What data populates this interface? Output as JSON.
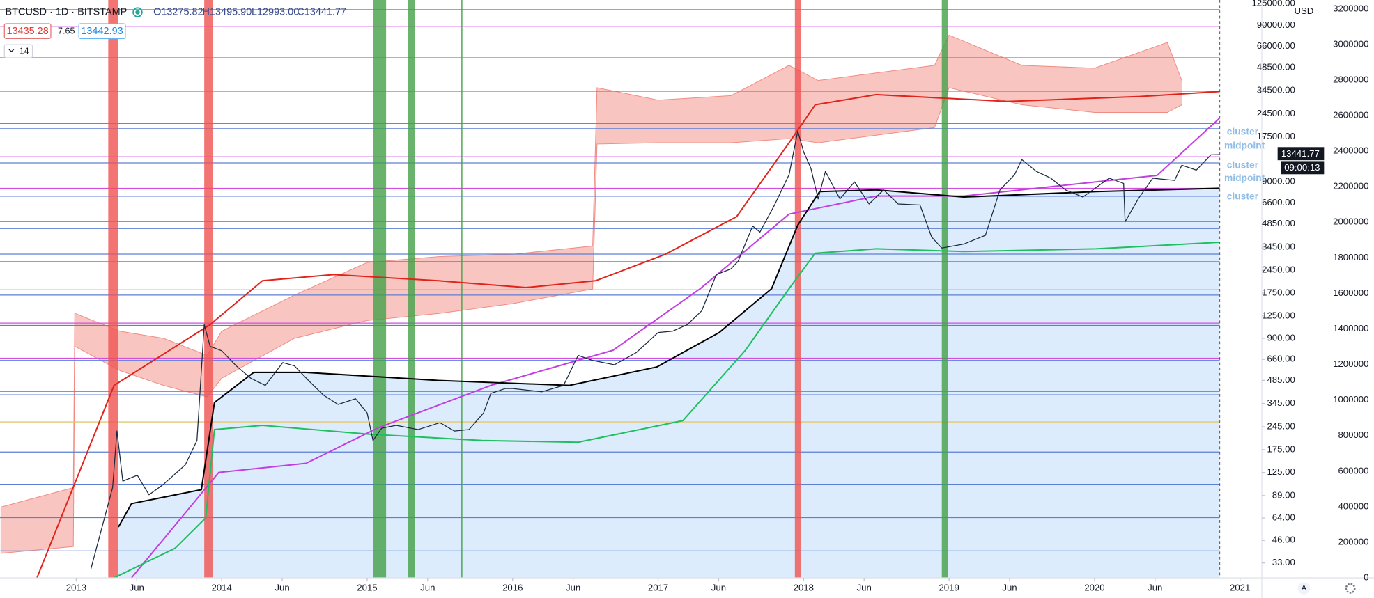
{
  "chart_data": {
    "type": "line",
    "symbol": "BTCUSD · 1D · BITSTAMP",
    "ohlc": [
      "O13275.82",
      "H13495.90",
      "L12993.00",
      "C13441.77"
    ],
    "indicator": {
      "left": "13435.28",
      "mid": "7.65",
      "right": "13442.93"
    },
    "interval": "14",
    "currency": "USD",
    "countdown": "09:00:13",
    "annotations": [
      "cluster",
      "midpoint",
      "cluster",
      "midpoint",
      "cluster"
    ],
    "auto_button": "A",
    "log_scale": true,
    "xlim": [
      2012.476,
      2021.15
    ],
    "xticks": [
      {
        "value": 2013,
        "label": "2013"
      },
      {
        "value": 2013.416,
        "label": "Jun"
      },
      {
        "value": 2014,
        "label": "2014"
      },
      {
        "value": 2014.416,
        "label": "Jun"
      },
      {
        "value": 2015,
        "label": "2015"
      },
      {
        "value": 2015.416,
        "label": "Jun"
      },
      {
        "value": 2016,
        "label": "2016"
      },
      {
        "value": 2016.416,
        "label": "Jun"
      },
      {
        "value": 2017,
        "label": "2017"
      },
      {
        "value": 2017.416,
        "label": "Jun"
      },
      {
        "value": 2018,
        "label": "2018"
      },
      {
        "value": 2018.416,
        "label": "Jun"
      },
      {
        "value": 2019,
        "label": "2019"
      },
      {
        "value": 2019.416,
        "label": "Jun"
      },
      {
        "value": 2020,
        "label": "2020"
      },
      {
        "value": 2020.416,
        "label": "Jun"
      },
      {
        "value": 2021,
        "label": "2021"
      }
    ],
    "ylim": [
      26.5,
      130800
    ],
    "yticks": [
      {
        "value": 125000,
        "label": "125000.00"
      },
      {
        "value": 90000,
        "label": "90000.00"
      },
      {
        "value": 66000,
        "label": "66000.00"
      },
      {
        "value": 48500,
        "label": "48500.00"
      },
      {
        "value": 34500,
        "label": "34500.00"
      },
      {
        "value": 24500,
        "label": "24500.00"
      },
      {
        "value": 17500,
        "label": "17500.00"
      },
      {
        "value": 9000,
        "label": "9000.00"
      },
      {
        "value": 6600,
        "label": "6600.00"
      },
      {
        "value": 4850,
        "label": "4850.00"
      },
      {
        "value": 3450,
        "label": "3450.00"
      },
      {
        "value": 2450,
        "label": "2450.00"
      },
      {
        "value": 1750,
        "label": "1750.00"
      },
      {
        "value": 1250,
        "label": "1250.00"
      },
      {
        "value": 900,
        "label": "900.00"
      },
      {
        "value": 660,
        "label": "660.00"
      },
      {
        "value": 485,
        "label": "485.00"
      },
      {
        "value": 345,
        "label": "345.00"
      },
      {
        "value": 245,
        "label": "245.00"
      },
      {
        "value": 175,
        "label": "175.00"
      },
      {
        "value": 125,
        "label": "125.00"
      },
      {
        "value": 89,
        "label": "89.00"
      },
      {
        "value": 64,
        "label": "64.00"
      },
      {
        "value": 46,
        "label": "46.00"
      },
      {
        "value": 33,
        "label": "33.00"
      }
    ],
    "y2lim": [
      0,
      3250000
    ],
    "y2ticks": [
      0,
      200000,
      400000,
      600000,
      800000,
      1000000,
      1200000,
      1400000,
      1600000,
      1800000,
      2000000,
      2200000,
      2400000,
      2600000,
      2800000,
      3000000,
      3200000
    ],
    "bands": [
      {
        "from": 2013.22,
        "to": 2013.29,
        "color": "#ef5350"
      },
      {
        "from": 2013.88,
        "to": 2013.94,
        "color": "#ef5350"
      },
      {
        "from": 2015.04,
        "to": 2015.13,
        "color": "#43a047"
      },
      {
        "from": 2015.28,
        "to": 2015.33,
        "color": "#43a047"
      },
      {
        "from": 2015.645,
        "to": 2015.655,
        "color": "#43a047"
      },
      {
        "from": 2017.94,
        "to": 2017.98,
        "color": "#ef5350"
      },
      {
        "from": 2018.95,
        "to": 2018.99,
        "color": "#43a047"
      }
    ],
    "levels": [
      {
        "color": "#d24de0",
        "values": [
          113500,
          88900,
          55900,
          34200,
          21260,
          13020,
          8190,
          5020,
          1836,
          1126,
          672,
          412
        ]
      },
      {
        "color": "#5c7fd6",
        "values": [
          19670,
          11900,
          7290,
          4530,
          3110,
          2780,
          1700,
          1087,
          650,
          392,
          169,
          105,
          64.3,
          39.4
        ]
      },
      {
        "color": "#e3c870",
        "values": [
          263
        ]
      }
    ],
    "envelope": {
      "color": "#f28b82",
      "x": [
        2012.48,
        2012.98,
        2012.99,
        2013.3,
        2013.6,
        2013.9,
        2014.0,
        2014.5,
        2015.0,
        2015.5,
        2016.0,
        2016.55,
        2016.58,
        2017.0,
        2017.5,
        2017.9,
        2018.1,
        2018.9,
        2019.0,
        2019.5,
        2020.0,
        2020.5,
        2020.6
      ],
      "upper": [
        75,
        100,
        1300,
        1000,
        900,
        700,
        1000,
        1700,
        2750,
        3000,
        3100,
        3500,
        36000,
        30000,
        32000,
        50000,
        40000,
        50000,
        78000,
        50000,
        48000,
        70000,
        40000
      ],
      "lower": [
        38,
        42,
        800,
        560,
        450,
        380,
        500,
        900,
        1170,
        1300,
        1500,
        1860,
        15700,
        16000,
        16000,
        17000,
        16000,
        20000,
        36000,
        28000,
        25000,
        25000,
        28000
      ]
    },
    "series": [
      {
        "color": "#1b2a3c",
        "x": [
          2013.1,
          2013.25,
          2013.28,
          2013.32,
          2013.42,
          2013.5,
          2013.6,
          2013.75,
          2013.83,
          2013.88,
          2013.92,
          2014.0,
          2014.1,
          2014.2,
          2014.3,
          2014.42,
          2014.5,
          2014.6,
          2014.7,
          2014.8,
          2014.92,
          2015.0,
          2015.04,
          2015.1,
          2015.2,
          2015.35,
          2015.5,
          2015.6,
          2015.7,
          2015.8,
          2015.85,
          2015.95,
          2016.0,
          2016.2,
          2016.35,
          2016.45,
          2016.55,
          2016.7,
          2016.85,
          2017.0,
          2017.1,
          2017.2,
          2017.3,
          2017.4,
          2017.5,
          2017.55,
          2017.65,
          2017.7,
          2017.8,
          2017.9,
          2017.96,
          2018.0,
          2018.05,
          2018.1,
          2018.15,
          2018.25,
          2018.35,
          2018.45,
          2018.55,
          2018.65,
          2018.8,
          2018.88,
          2018.95,
          2019.1,
          2019.25,
          2019.35,
          2019.45,
          2019.5,
          2019.6,
          2019.7,
          2019.8,
          2019.92,
          2020.1,
          2020.2,
          2020.21,
          2020.3,
          2020.4,
          2020.55,
          2020.6,
          2020.7,
          2020.8,
          2020.86
        ],
        "values": [
          30,
          100,
          230,
          110,
          120,
          90,
          105,
          140,
          200,
          1100,
          800,
          750,
          600,
          500,
          450,
          630,
          600,
          480,
          390,
          340,
          370,
          300,
          200,
          240,
          250,
          235,
          260,
          230,
          235,
          300,
          400,
          430,
          430,
          410,
          450,
          700,
          650,
          610,
          730,
          980,
          1000,
          1100,
          1350,
          2300,
          2500,
          2800,
          4700,
          4300,
          6400,
          10000,
          19000,
          14000,
          11000,
          7000,
          10500,
          7000,
          9000,
          6500,
          8000,
          6500,
          6400,
          4000,
          3400,
          3600,
          4100,
          8000,
          10000,
          12500,
          10500,
          9500,
          8000,
          7200,
          9500,
          8800,
          5000,
          7000,
          9500,
          9200,
          11500,
          10700,
          13400,
          13441.77
        ]
      },
      {
        "color": "#e0241b",
        "x": [
          2012.73,
          2013.26,
          2013.92,
          2014.28,
          2014.77,
          2015.49,
          2016.09,
          2016.57,
          2017.05,
          2017.54,
          2017.9,
          2018.08,
          2018.5,
          2019.4,
          2020.31,
          2020.86
        ],
        "values": [
          26.5,
          450,
          1100,
          2100,
          2300,
          2100,
          1900,
          2100,
          3100,
          5400,
          16000,
          28000,
          32500,
          29400,
          31600,
          34000
        ]
      },
      {
        "color": "#000000",
        "fill": "#d6e9fb",
        "x": [
          2013.29,
          2013.38,
          2013.86,
          2013.95,
          2014.22,
          2014.58,
          2015.49,
          2016.39,
          2016.99,
          2017.42,
          2017.78,
          2017.96,
          2018.11,
          2018.5,
          2019.1,
          2020.01,
          2020.86
        ],
        "values": [
          56,
          79,
          97,
          350,
          545,
          545,
          484,
          450,
          590,
          980,
          1870,
          4760,
          7800,
          8000,
          7200,
          7800,
          8200
        ]
      },
      {
        "color": "#1fbf5f",
        "x": [
          2013.26,
          2013.68,
          2013.89,
          2013.95,
          2014.28,
          2015.0,
          2015.79,
          2016.45,
          2017.17,
          2017.6,
          2017.9,
          2018.08,
          2018.5,
          2019.1,
          2020.01,
          2020.86
        ],
        "values": [
          26.5,
          41,
          64,
          235,
          250,
          220,
          200,
          195,
          268,
          755,
          1870,
          3150,
          3360,
          3230,
          3360,
          3700
        ]
      },
      {
        "color": "#c13fe0",
        "x": [
          2013.38,
          2013.98,
          2014.58,
          2015.07,
          2015.85,
          2016.69,
          2017.29,
          2017.9,
          2018.5,
          2019.1,
          2020.01,
          2020.43,
          2020.86
        ],
        "values": [
          26.5,
          125,
          143,
          240,
          450,
          755,
          1870,
          5600,
          7300,
          7300,
          9000,
          9900,
          23000
        ]
      }
    ]
  }
}
